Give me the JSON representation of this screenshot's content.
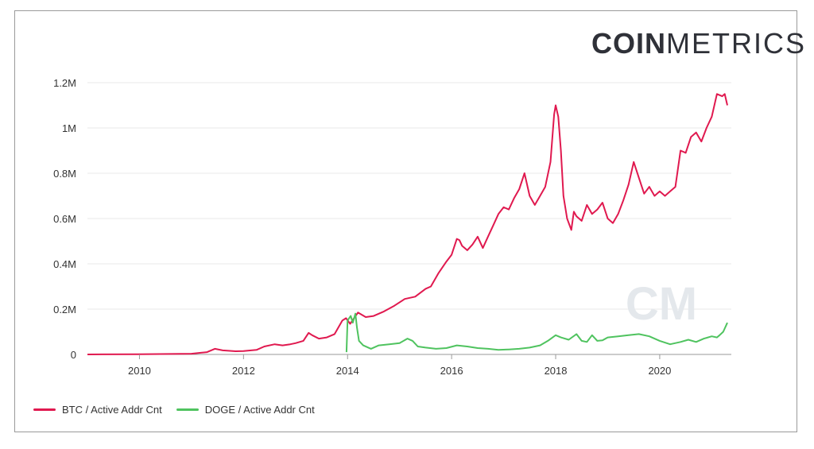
{
  "brand": {
    "bold": "COIN",
    "light": "METRICS"
  },
  "watermark": "CM",
  "chart_data": {
    "type": "line",
    "title": "",
    "xlabel": "",
    "ylabel": "",
    "xlim": [
      2009.0,
      2021.3
    ],
    "ylim": [
      0,
      1200000
    ],
    "y_ticks": [
      {
        "value": 0,
        "label": "0"
      },
      {
        "value": 200000,
        "label": "0.2M"
      },
      {
        "value": 400000,
        "label": "0.4M"
      },
      {
        "value": 600000,
        "label": "0.6M"
      },
      {
        "value": 800000,
        "label": "0.8M"
      },
      {
        "value": 1000000,
        "label": "1M"
      },
      {
        "value": 1200000,
        "label": "1.2M"
      }
    ],
    "x_ticks": [
      {
        "value": 2010,
        "label": "2010"
      },
      {
        "value": 2012,
        "label": "2012"
      },
      {
        "value": 2014,
        "label": "2014"
      },
      {
        "value": 2016,
        "label": "2016"
      },
      {
        "value": 2018,
        "label": "2018"
      },
      {
        "value": 2020,
        "label": "2020"
      }
    ],
    "series": [
      {
        "name": "BTC / Active Addr Cnt",
        "color": "#e0194f",
        "x": [
          2009.0,
          2010.0,
          2011.0,
          2011.3,
          2011.45,
          2011.6,
          2011.85,
          2012.0,
          2012.25,
          2012.4,
          2012.6,
          2012.75,
          2012.9,
          2013.0,
          2013.15,
          2013.25,
          2013.32,
          2013.45,
          2013.6,
          2013.75,
          2013.9,
          2013.97,
          2014.05,
          2014.2,
          2014.35,
          2014.5,
          2014.7,
          2014.9,
          2015.1,
          2015.3,
          2015.5,
          2015.6,
          2015.75,
          2015.9,
          2016.0,
          2016.1,
          2016.15,
          2016.2,
          2016.3,
          2016.4,
          2016.5,
          2016.6,
          2016.7,
          2016.8,
          2016.9,
          2017.0,
          2017.1,
          2017.2,
          2017.3,
          2017.4,
          2017.5,
          2017.6,
          2017.7,
          2017.8,
          2017.9,
          2017.97,
          2018.0,
          2018.05,
          2018.1,
          2018.15,
          2018.22,
          2018.3,
          2018.35,
          2018.4,
          2018.5,
          2018.6,
          2018.7,
          2018.8,
          2018.9,
          2019.0,
          2019.1,
          2019.2,
          2019.3,
          2019.4,
          2019.5,
          2019.6,
          2019.7,
          2019.8,
          2019.9,
          2020.0,
          2020.1,
          2020.2,
          2020.3,
          2020.4,
          2020.5,
          2020.6,
          2020.7,
          2020.8,
          2020.9,
          2021.0,
          2021.1,
          2021.2,
          2021.25,
          2021.3
        ],
        "values": [
          0,
          1000,
          3000,
          10000,
          25000,
          18000,
          14000,
          15000,
          20000,
          35000,
          45000,
          40000,
          45000,
          50000,
          60000,
          95000,
          85000,
          70000,
          75000,
          90000,
          150000,
          160000,
          135000,
          185000,
          165000,
          170000,
          190000,
          215000,
          245000,
          255000,
          290000,
          300000,
          360000,
          410000,
          440000,
          510000,
          505000,
          480000,
          460000,
          485000,
          520000,
          470000,
          520000,
          570000,
          620000,
          650000,
          640000,
          690000,
          730000,
          800000,
          700000,
          660000,
          700000,
          740000,
          850000,
          1060000,
          1100000,
          1050000,
          900000,
          700000,
          600000,
          550000,
          630000,
          610000,
          590000,
          660000,
          620000,
          640000,
          670000,
          600000,
          580000,
          620000,
          680000,
          750000,
          850000,
          780000,
          710000,
          740000,
          700000,
          720000,
          700000,
          720000,
          740000,
          900000,
          890000,
          960000,
          980000,
          940000,
          1000000,
          1050000,
          1150000,
          1140000,
          1150000,
          1100000
        ]
      },
      {
        "name": "DOGE / Active Addr Cnt",
        "color": "#4fc35f",
        "x": [
          2013.98,
          2014.0,
          2014.03,
          2014.06,
          2014.1,
          2014.15,
          2014.18,
          2014.22,
          2014.3,
          2014.45,
          2014.6,
          2014.8,
          2015.0,
          2015.15,
          2015.25,
          2015.35,
          2015.5,
          2015.7,
          2015.9,
          2016.1,
          2016.3,
          2016.5,
          2016.7,
          2016.9,
          2017.1,
          2017.3,
          2017.5,
          2017.7,
          2017.85,
          2018.0,
          2018.1,
          2018.25,
          2018.4,
          2018.5,
          2018.6,
          2018.7,
          2018.8,
          2018.9,
          2019.0,
          2019.2,
          2019.4,
          2019.6,
          2019.8,
          2020.0,
          2020.2,
          2020.4,
          2020.55,
          2020.7,
          2020.85,
          2021.0,
          2021.1,
          2021.15,
          2021.22,
          2021.3
        ],
        "values": [
          10000,
          150000,
          160000,
          170000,
          140000,
          180000,
          120000,
          60000,
          40000,
          25000,
          40000,
          45000,
          50000,
          70000,
          60000,
          35000,
          30000,
          25000,
          28000,
          40000,
          35000,
          28000,
          25000,
          20000,
          22000,
          25000,
          30000,
          40000,
          60000,
          85000,
          75000,
          65000,
          90000,
          60000,
          55000,
          85000,
          60000,
          62000,
          75000,
          80000,
          85000,
          90000,
          80000,
          60000,
          45000,
          55000,
          65000,
          55000,
          70000,
          80000,
          75000,
          85000,
          100000,
          140000
        ]
      }
    ],
    "legend_position": "bottom-left"
  }
}
